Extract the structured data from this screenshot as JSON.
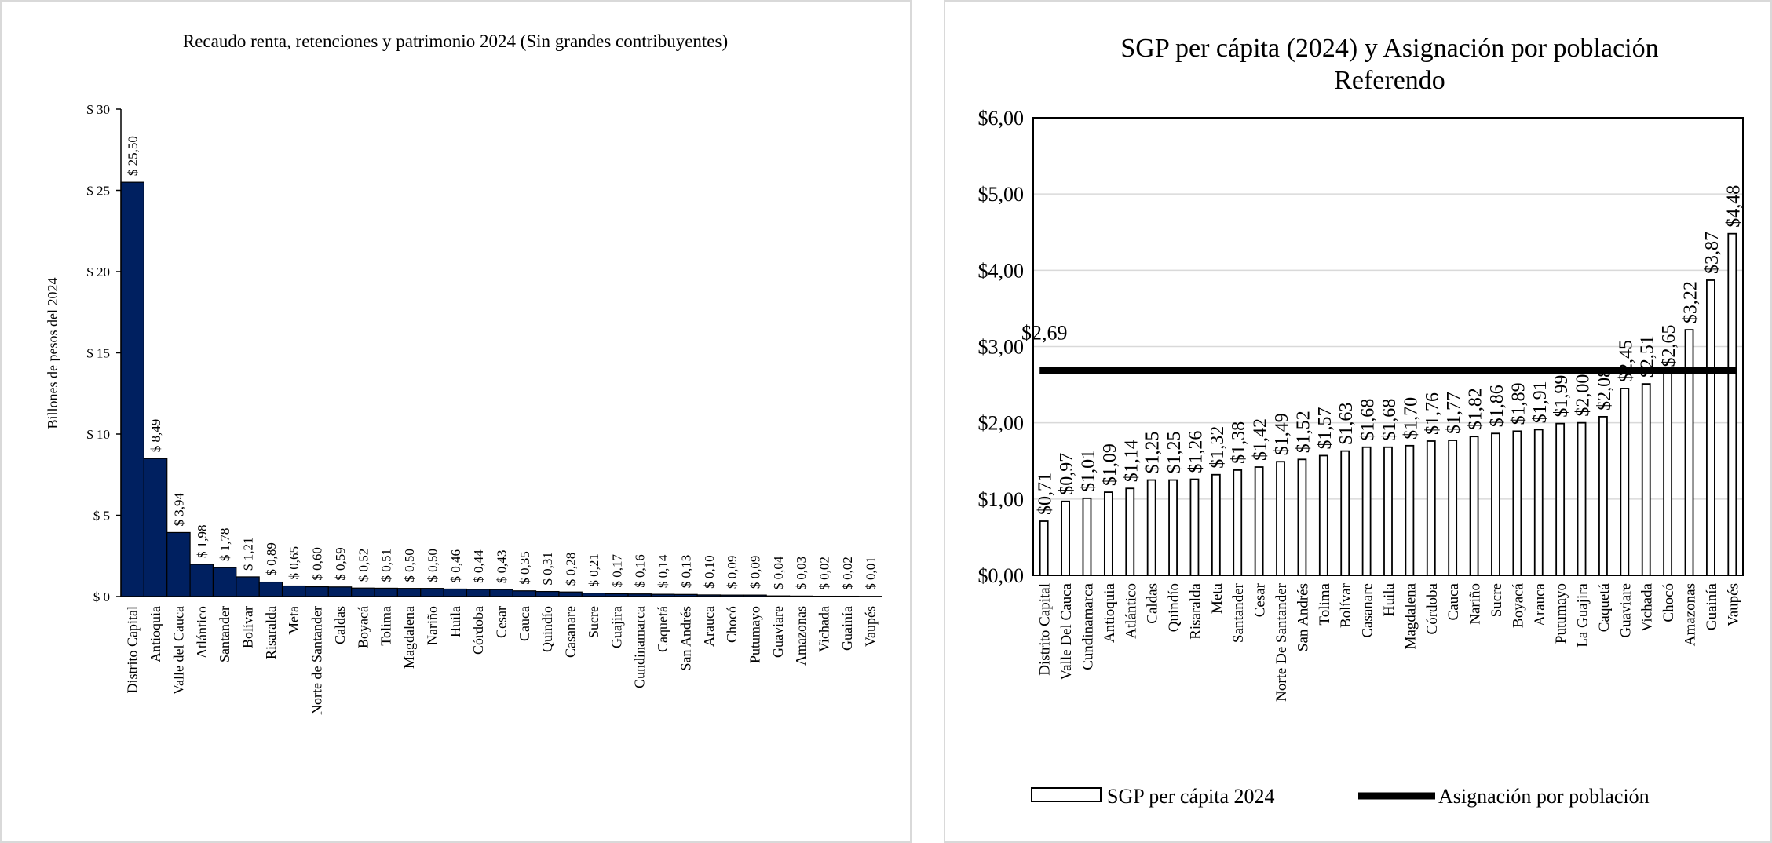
{
  "chart_data": [
    {
      "type": "bar",
      "title": "Recaudo renta, retenciones y patrimonio 2024 (Sin grandes contribuyentes)",
      "ylabel": "Billones de pesos del 2024",
      "ylim": [
        0,
        30
      ],
      "yticks": [
        "$ 0",
        "$ 5",
        "$ 10",
        "$ 15",
        "$ 20",
        "$ 25",
        "$ 30"
      ],
      "bar_color": "#002060",
      "grid": false,
      "categories": [
        "Distrito Capital",
        "Antioquia",
        "Valle del Cauca",
        "Atlántico",
        "Santander",
        "Bolívar",
        "Risaralda",
        "Meta",
        "Norte de Santander",
        "Caldas",
        "Boyacá",
        "Tolima",
        "Magdalena",
        "Nariño",
        "Huila",
        "Córdoba",
        "Cesar",
        "Cauca",
        "Quindío",
        "Casanare",
        "Sucre",
        "Guajira",
        "Cundinamarca",
        "Caquetá",
        "San Andrés",
        "Arauca",
        "Chocó",
        "Putumayo",
        "Guaviare",
        "Amazonas",
        "Vichada",
        "Guainía",
        "Vaupés"
      ],
      "values": [
        25.5,
        8.49,
        3.94,
        1.98,
        1.78,
        1.21,
        0.89,
        0.65,
        0.6,
        0.59,
        0.52,
        0.51,
        0.5,
        0.5,
        0.46,
        0.44,
        0.43,
        0.35,
        0.31,
        0.28,
        0.21,
        0.17,
        0.16,
        0.14,
        0.13,
        0.1,
        0.09,
        0.09,
        0.04,
        0.03,
        0.02,
        0.02,
        0.01
      ],
      "labels": [
        "$ 25,50",
        "$ 8,49",
        "$ 3,94",
        "$ 1,98",
        "$ 1,78",
        "$ 1,21",
        "$ 0,89",
        "$ 0,65",
        "$ 0,60",
        "$ 0,59",
        "$ 0,52",
        "$ 0,51",
        "$ 0,50",
        "$ 0,50",
        "$ 0,46",
        "$ 0,44",
        "$ 0,43",
        "$ 0,35",
        "$ 0,31",
        "$ 0,28",
        "$ 0,21",
        "$ 0,17",
        "$ 0,16",
        "$ 0,14",
        "$ 0,13",
        "$ 0,10",
        "$ 0,09",
        "$ 0,09",
        "$ 0,04",
        "$ 0,03",
        "$ 0,02",
        "$ 0,02",
        "$ 0,01"
      ]
    },
    {
      "type": "bar",
      "title_lines": [
        "SGP per cápita  (2024) y Asignación por población",
        "Referendo"
      ],
      "ylim": [
        0,
        6
      ],
      "yticks": [
        "$0,00",
        "$1,00",
        "$2,00",
        "$3,00",
        "$4,00",
        "$5,00",
        "$6,00"
      ],
      "grid": true,
      "legend_position": "bottom",
      "categories": [
        "Distrito Capital",
        "Valle Del Cauca",
        "Cundinamarca",
        "Antioquia",
        "Atlántico",
        "Caldas",
        "Quindío",
        "Risaralda",
        "Meta",
        "Santander",
        "Cesar",
        "Norte De Santander",
        "San Andrés",
        "Tolima",
        "Bolívar",
        "Casanare",
        "Huila",
        "Magdalena",
        "Córdoba",
        "Cauca",
        "Nariño",
        "Sucre",
        "Boyacá",
        "Arauca",
        "Putumayo",
        "La Guajira",
        "Caquetá",
        "Guaviare",
        "Vichada",
        "Chocó",
        "Amazonas",
        "Guainía",
        "Vaupés"
      ],
      "series": [
        {
          "name": "SGP per cápita 2024",
          "kind": "bar",
          "values": [
            0.71,
            0.97,
            1.01,
            1.09,
            1.14,
            1.25,
            1.25,
            1.26,
            1.32,
            1.38,
            1.42,
            1.49,
            1.52,
            1.57,
            1.63,
            1.68,
            1.68,
            1.7,
            1.76,
            1.77,
            1.82,
            1.86,
            1.89,
            1.91,
            1.99,
            2.0,
            2.08,
            2.45,
            2.51,
            2.65,
            3.22,
            3.87,
            4.48
          ],
          "labels": [
            "$0,71",
            "$0,97",
            "$1,01",
            "$1,09",
            "$1,14",
            "$1,25",
            "$1,25",
            "$1,26",
            "$1,32",
            "$1,38",
            "$1,42",
            "$1,49",
            "$1,52",
            "$1,57",
            "$1,63",
            "$1,68",
            "$1,68",
            "$1,70",
            "$1,76",
            "$1,77",
            "$1,82",
            "$1,86",
            "$1,89",
            "$1,91",
            "$1,99",
            "$2,00",
            "$2,08",
            "$2,45",
            "$2,51",
            "$2,65",
            "$3,22",
            "$3,87",
            "$4,48"
          ]
        },
        {
          "name": "Asignación por población",
          "kind": "line",
          "value": 2.69,
          "label": "$2,69"
        }
      ]
    }
  ]
}
